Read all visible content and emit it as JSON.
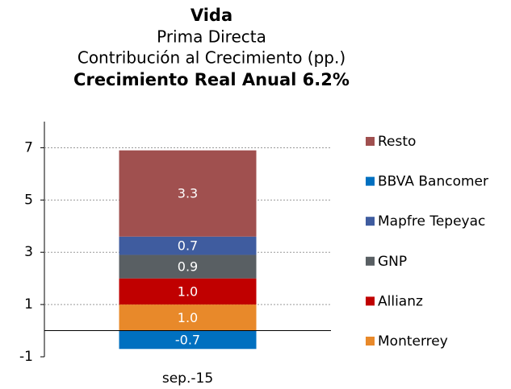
{
  "chart_data": {
    "type": "stacked_bar",
    "title": "Vida",
    "subtitle": [
      "Prima Directa",
      "Contribución al Crecimiento (pp.)"
    ],
    "headline": "Crecimiento Real Anual 6.2%",
    "categories": [
      "sep.-15"
    ],
    "series": [
      {
        "name": "Monterrey",
        "color": "#e8892a",
        "values": [
          1.0
        ],
        "value_labels": [
          "1.0"
        ]
      },
      {
        "name": "Allianz",
        "color": "#c00000",
        "values": [
          1.0
        ],
        "value_labels": [
          "1.0"
        ]
      },
      {
        "name": "GNP",
        "color": "#595f63",
        "values": [
          0.9
        ]
      },
      {
        "name": "Mapfre Tepeyac",
        "color": "#3f5c9f",
        "values": [
          0.7
        ]
      },
      {
        "name": "BBVA Bancomer",
        "color": "#0070c0",
        "values": [
          -0.7
        ]
      },
      {
        "name": "Resto",
        "color": "#a0504f",
        "values": [
          3.3
        ]
      }
    ],
    "ylim": [
      -1,
      8
    ],
    "yticks": [
      -1,
      1,
      3,
      5,
      7
    ],
    "grid": true,
    "legend": "right"
  }
}
